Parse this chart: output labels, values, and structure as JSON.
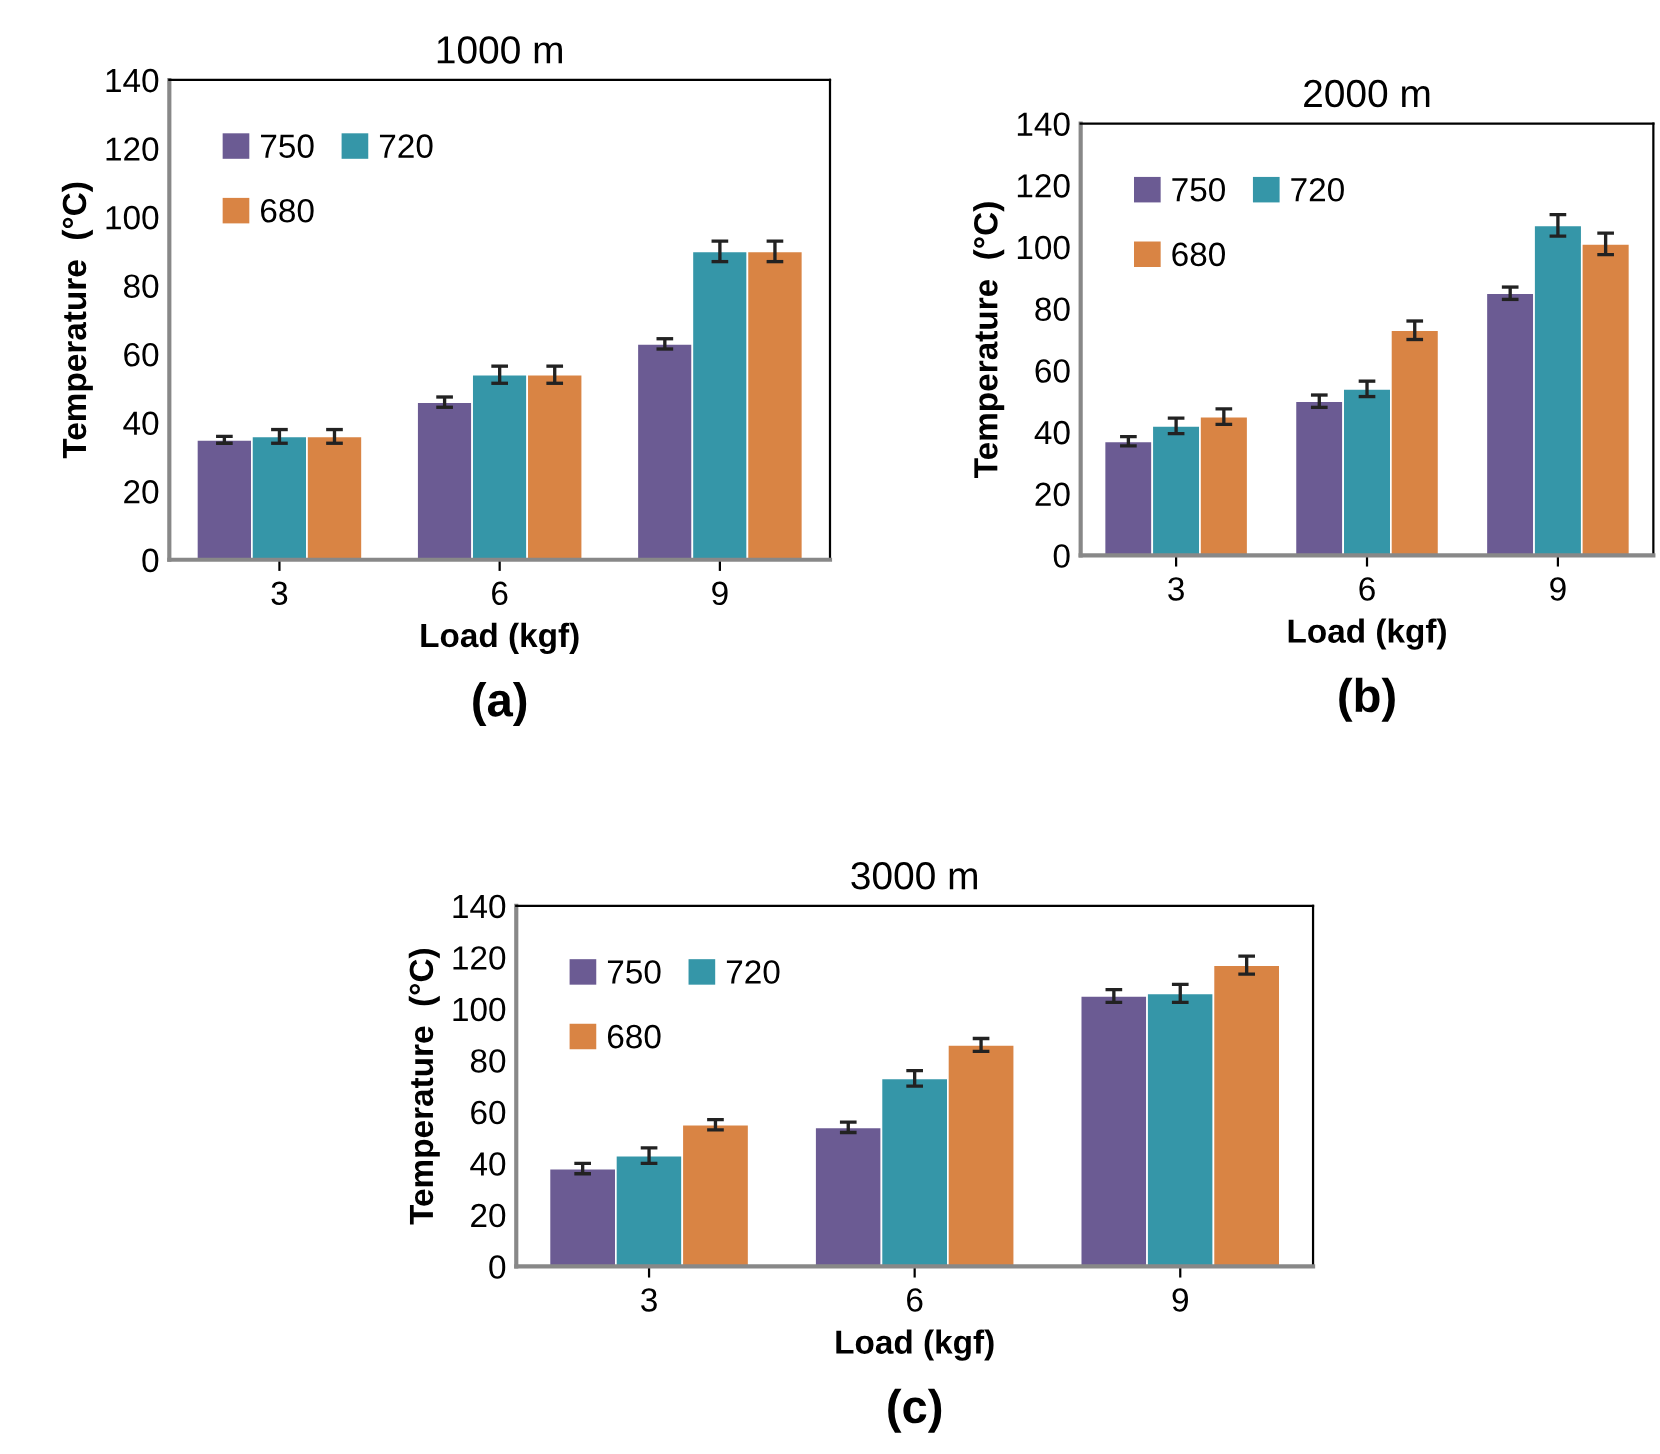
{
  "chart_data": [
    {
      "type": "bar",
      "title": "1000 m",
      "xlabel": "Load (kgf)",
      "ylabel": "Temperature  (°C)",
      "categories": [
        "3",
        "6",
        "9"
      ],
      "ylim": [
        0,
        140
      ],
      "yticks": [
        0,
        20,
        40,
        60,
        80,
        100,
        120,
        140
      ],
      "legend": "top left",
      "annotations": [
        "(a)"
      ],
      "series": [
        {
          "name": "750",
          "color": "#6b5b93",
          "values": [
            35,
            46,
            63
          ],
          "errors": [
            1,
            1.5,
            1.5
          ]
        },
        {
          "name": "720",
          "color": "#3596a8",
          "values": [
            36,
            54,
            90
          ],
          "errors": [
            2,
            2.5,
            3
          ]
        },
        {
          "name": "680",
          "color": "#d98444",
          "values": [
            36,
            54,
            90
          ],
          "errors": [
            2,
            2.5,
            3
          ]
        }
      ]
    },
    {
      "type": "bar",
      "title": "2000 m",
      "xlabel": "Load (kgf)",
      "ylabel": "Temperature  (°C)",
      "categories": [
        "3",
        "6",
        "9"
      ],
      "ylim": [
        0,
        140
      ],
      "yticks": [
        0,
        20,
        40,
        60,
        80,
        100,
        120,
        140
      ],
      "legend": "top left",
      "annotations": [
        "(b)"
      ],
      "series": [
        {
          "name": "750",
          "color": "#6b5b93",
          "values": [
            37,
            50,
            85
          ],
          "errors": [
            1.5,
            2,
            2
          ]
        },
        {
          "name": "720",
          "color": "#3596a8",
          "values": [
            42,
            54,
            107
          ],
          "errors": [
            2.5,
            2.5,
            3.5
          ]
        },
        {
          "name": "680",
          "color": "#d98444",
          "values": [
            45,
            73,
            101
          ],
          "errors": [
            2.5,
            3,
            3.5
          ]
        }
      ]
    },
    {
      "type": "bar",
      "title": "3000 m",
      "xlabel": "Load (kgf)",
      "ylabel": "Temperature  (°C)",
      "categories": [
        "3",
        "6",
        "9"
      ],
      "ylim": [
        0,
        140
      ],
      "yticks": [
        0,
        20,
        40,
        60,
        80,
        100,
        120,
        140
      ],
      "legend": "top left",
      "annotations": [
        "(c)"
      ],
      "series": [
        {
          "name": "750",
          "color": "#6b5b93",
          "values": [
            38,
            54,
            105
          ],
          "errors": [
            2,
            2,
            2.5
          ]
        },
        {
          "name": "720",
          "color": "#3596a8",
          "values": [
            43,
            73,
            106
          ],
          "errors": [
            3,
            3,
            3.5
          ]
        },
        {
          "name": "680",
          "color": "#d98444",
          "values": [
            55,
            86,
            117
          ],
          "errors": [
            2,
            2.5,
            3.5
          ]
        }
      ]
    }
  ]
}
